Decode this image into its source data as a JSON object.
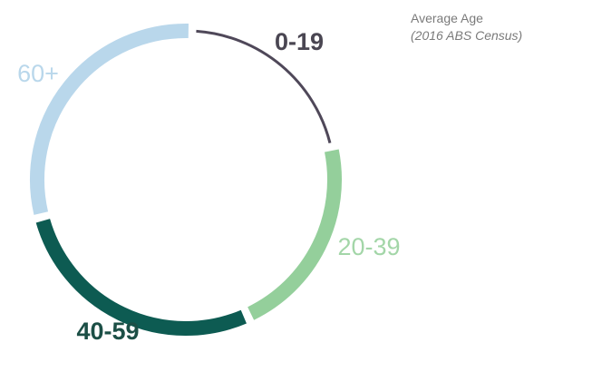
{
  "chart_data": {
    "type": "pie",
    "style": "donut-ring",
    "title": "Average Age",
    "subtitle": "(2016 ABS Census)",
    "categories": [
      "0-19",
      "20-39",
      "40-59",
      "60+"
    ],
    "values": [
      20,
      21,
      27,
      29
    ],
    "colors": [
      "#4f4859",
      "#94cf9b",
      "#0d5b52",
      "#b9d7eb"
    ],
    "label_colors": [
      "#4a4652",
      "#a3d6a8",
      "#1c4f46",
      "#b9d7eb"
    ]
  }
}
